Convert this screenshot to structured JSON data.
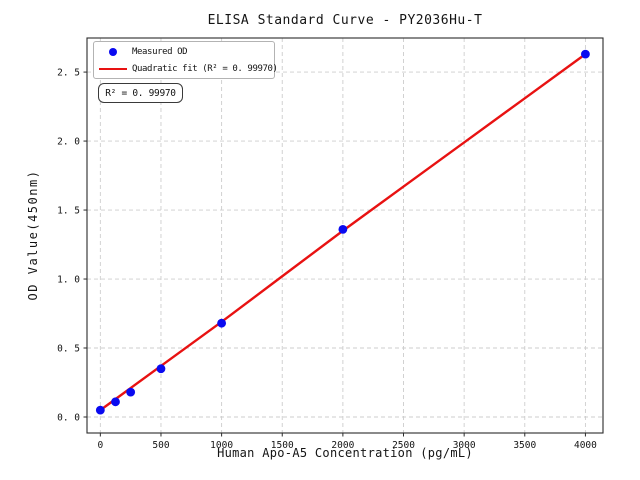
{
  "figure": {
    "background": "#ffffff",
    "accent_blue": "#0a0af0",
    "accent_red": "#e81212"
  },
  "chart_data": {
    "type": "scatter",
    "title": "ELISA Standard Curve - PY2036Hu-T",
    "xlabel": "Human Apo-A5 Concentration (pg/mL)",
    "ylabel": "OD Value(450nm)",
    "grid": true,
    "legend_position": "upper left",
    "xlim": [
      -110,
      4145
    ],
    "ylim": [
      -0.116,
      2.747
    ],
    "x_ticks": {
      "values": [
        0,
        500,
        1000,
        1500,
        2000,
        2500,
        3000,
        3500,
        4000
      ],
      "labels": [
        "0",
        "500",
        "1000",
        "1500",
        "2000",
        "2500",
        "3000",
        "3500",
        "4000"
      ]
    },
    "y_ticks": {
      "values": [
        0.0,
        0.5,
        1.0,
        1.5,
        2.0,
        2.5
      ],
      "labels": [
        "0. 0",
        "0. 5",
        "1. 0",
        "1. 5",
        "2. 0",
        "2. 5"
      ]
    },
    "series": [
      {
        "name": "Measured OD",
        "kind": "scatter",
        "color": "#0a0af0",
        "x": [
          0,
          125,
          250,
          500,
          1000,
          2000,
          4000
        ],
        "y": [
          0.05,
          0.11,
          0.18,
          0.35,
          0.68,
          1.36,
          2.63
        ]
      },
      {
        "name": "Quadratic fit",
        "kind": "line",
        "color": "#e81212",
        "x": [
          0,
          500,
          1000,
          1500,
          2000,
          2500,
          3000,
          3500,
          4000
        ],
        "y": [
          0.05,
          0.37,
          0.69,
          1.02,
          1.35,
          1.67,
          1.99,
          2.31,
          2.63
        ]
      }
    ],
    "r_squared": "0.99970"
  },
  "legend": {
    "entries": [
      {
        "label": "Measured OD",
        "swatch": "blue-dot"
      },
      {
        "label": "Quadratic fit (R² = 0. 99970)",
        "swatch": "red-line"
      }
    ]
  },
  "annotation": {
    "text": "R² = 0. 99970"
  }
}
